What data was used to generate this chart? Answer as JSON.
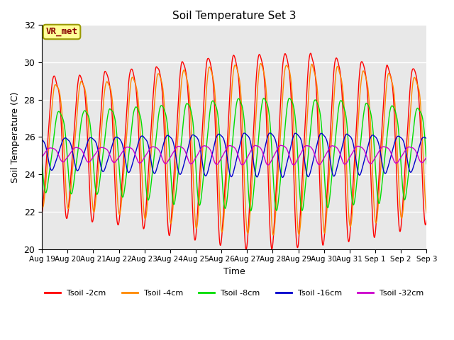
{
  "title": "Soil Temperature Set 3",
  "xlabel": "Time",
  "ylabel": "Soil Temperature (C)",
  "ylim": [
    20,
    32
  ],
  "background_color": "#e8e8e8",
  "grid_color": "white",
  "label_box_text": "VR_met",
  "label_box_facecolor": "#ffff99",
  "label_box_edgecolor": "#999900",
  "label_box_textcolor": "#880000",
  "x_tick_labels": [
    "Aug 19",
    "Aug 20",
    "Aug 21",
    "Aug 22",
    "Aug 23",
    "Aug 24",
    "Aug 25",
    "Aug 26",
    "Aug 27",
    "Aug 28",
    "Aug 29",
    "Aug 30",
    "Aug 31",
    "Sep 1",
    "Sep 2",
    "Sep 3"
  ],
  "series": [
    {
      "label": "Tsoil -2cm",
      "color": "#ff0000",
      "amplitude": 4.0,
      "mean": 26.0,
      "phase_delay": 0.0,
      "amp_scale": 1.0
    },
    {
      "label": "Tsoil -4cm",
      "color": "#ff8800",
      "amplitude": 3.5,
      "mean": 26.0,
      "phase_delay": 0.06,
      "amp_scale": 0.95
    },
    {
      "label": "Tsoil -8cm",
      "color": "#00dd00",
      "amplitude": 2.3,
      "mean": 25.5,
      "phase_delay": 0.18,
      "amp_scale": 0.9
    },
    {
      "label": "Tsoil -16cm",
      "color": "#0000cc",
      "amplitude": 0.9,
      "mean": 25.2,
      "phase_delay": 0.42,
      "amp_scale": 0.85
    },
    {
      "label": "Tsoil -32cm",
      "color": "#cc00cc",
      "amplitude": 0.4,
      "mean": 25.1,
      "phase_delay": 0.85,
      "amp_scale": 0.8
    }
  ]
}
